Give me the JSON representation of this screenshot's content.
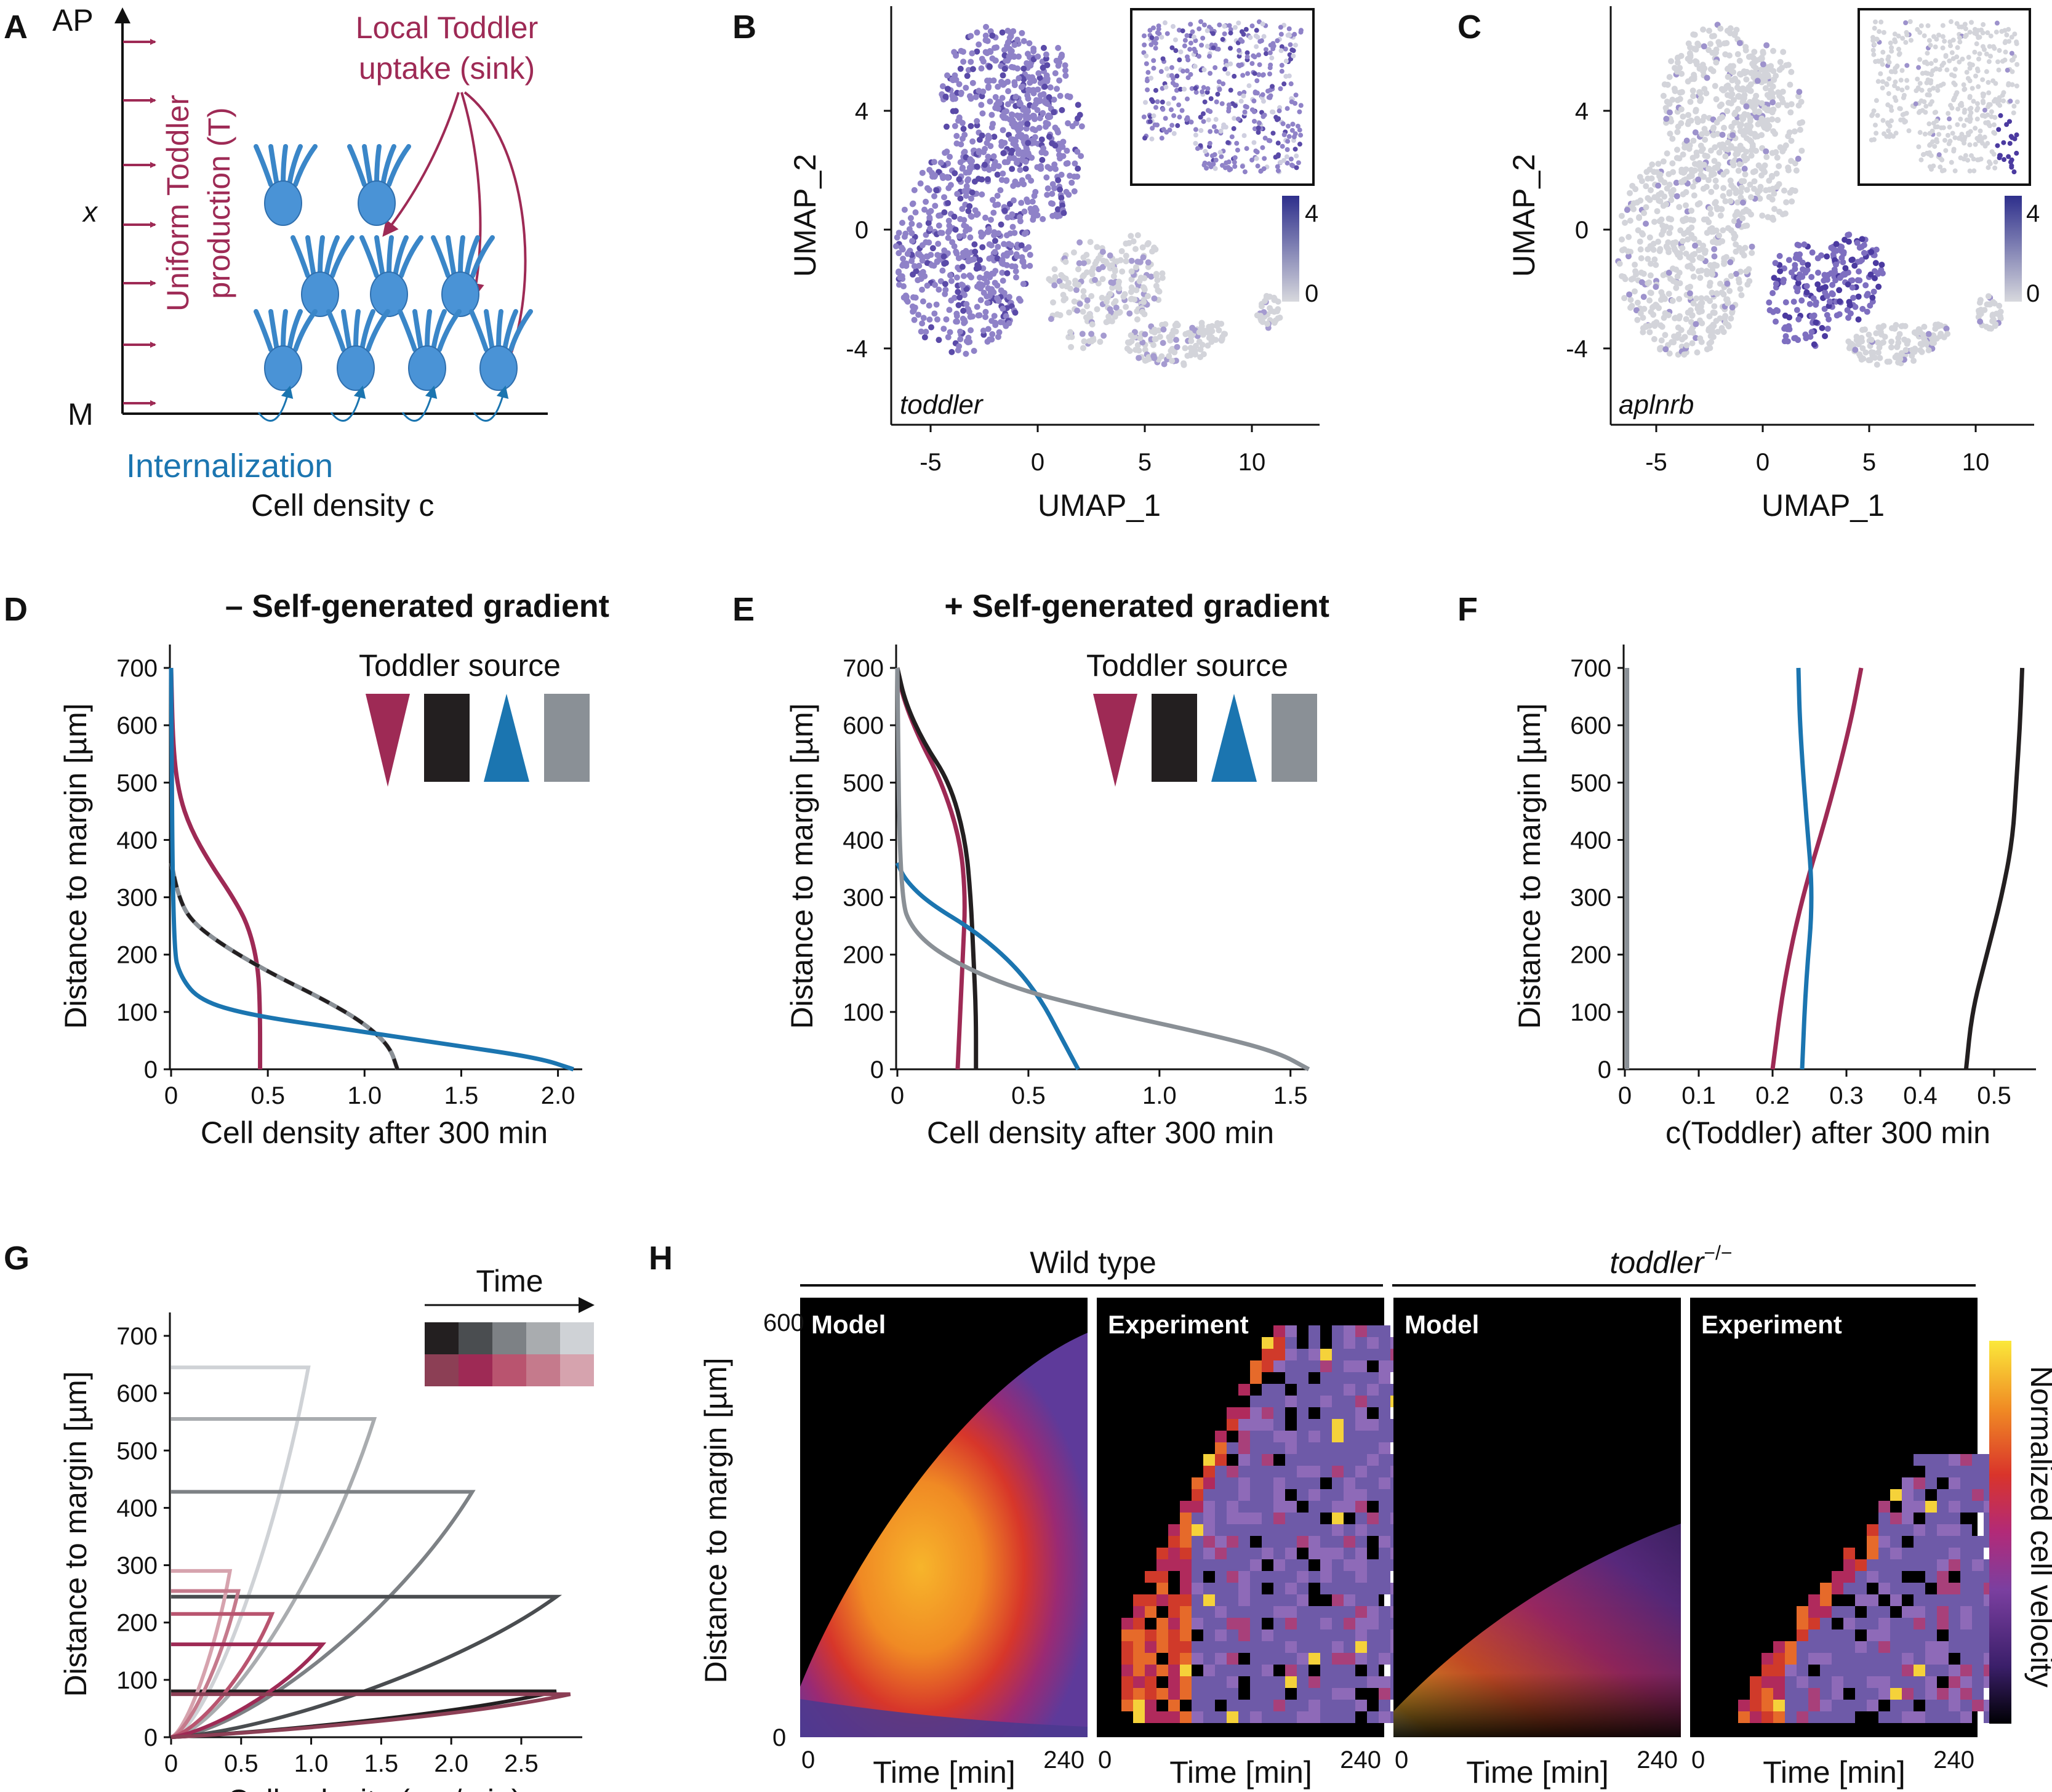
{
  "panels": {
    "A": {
      "letter": "A",
      "top_label": "AP",
      "bottom_label": "M",
      "x_var": "x",
      "production_label_1": "Uniform Toddler",
      "production_label_2": "production (T)",
      "sink_label_1": "Local Toddler",
      "sink_label_2": "uptake (sink)",
      "internalization": "Internalization",
      "xlabel": "Cell density c"
    },
    "B": {
      "letter": "B",
      "gene": "toddler",
      "xlabel": "UMAP_1",
      "ylabel": "UMAP_2",
      "xticks": [
        "-5",
        "0",
        "5",
        "10"
      ],
      "yticks": [
        "4",
        "0",
        "-4"
      ],
      "scale_ticks": [
        "4",
        "0"
      ]
    },
    "C": {
      "letter": "C",
      "gene": "aplnrb",
      "xlabel": "UMAP_1",
      "ylabel": "UMAP_2",
      "xticks": [
        "-5",
        "0",
        "5",
        "10"
      ],
      "yticks": [
        "4",
        "0",
        "-4"
      ],
      "scale_ticks": [
        "4",
        "0"
      ]
    },
    "D": {
      "letter": "D",
      "title": "– Self-generated gradient",
      "legend_title": "Toddler source"
    },
    "E": {
      "letter": "E",
      "title": "+ Self-generated gradient",
      "legend_title": "Toddler source"
    },
    "F": {
      "letter": "F"
    },
    "G": {
      "letter": "G",
      "legend_title": "Time"
    },
    "H": {
      "letter": "H",
      "group_wt": "Wild type",
      "group_mut": "toddler",
      "group_mut_sup": "−/−",
      "sub": [
        "Model",
        "Experiment",
        "Model",
        "Experiment"
      ],
      "ylabel": "Distance to margin [µm]",
      "yticks": [
        "600",
        "0"
      ],
      "xlabel": "Time [min]",
      "xticks": [
        "0",
        "240"
      ],
      "cbar_label": "Normalized cell velocity"
    }
  },
  "colors": {
    "crimson": "#9e2a55",
    "black": "#231f20",
    "blue": "#1b75b0",
    "gray": "#8a9096"
  },
  "chart_data": [
    {
      "id": "D",
      "type": "line",
      "xlabel": "Cell density after 300 min",
      "ylabel": "Distance to margin [µm]",
      "xlim": [
        0,
        2.1
      ],
      "ylim": [
        0,
        700
      ],
      "xticks": [
        "0",
        "0.5",
        "1.0",
        "1.5",
        "2.0"
      ],
      "yticks": [
        "0",
        "100",
        "200",
        "300",
        "400",
        "500",
        "600",
        "700"
      ],
      "series": [
        {
          "color": "crimson",
          "points": [
            [
              0.46,
              0
            ],
            [
              0.46,
              100
            ],
            [
              0.45,
              180
            ],
            [
              0.4,
              250
            ],
            [
              0.32,
              300
            ],
            [
              0.2,
              360
            ],
            [
              0.1,
              420
            ],
            [
              0.04,
              480
            ],
            [
              0.01,
              560
            ],
            [
              0,
              700
            ]
          ]
        },
        {
          "color": "gray",
          "points": [
            [
              1.17,
              0
            ],
            [
              1.13,
              40
            ],
            [
              1.0,
              80
            ],
            [
              0.8,
              120
            ],
            [
              0.5,
              170
            ],
            [
              0.25,
              220
            ],
            [
              0.1,
              260
            ],
            [
              0.04,
              300
            ],
            [
              0,
              360
            ]
          ]
        },
        {
          "color": "black",
          "dashed": true,
          "points": [
            [
              1.17,
              0
            ],
            [
              1.13,
              40
            ],
            [
              1.0,
              80
            ],
            [
              0.8,
              120
            ],
            [
              0.5,
              170
            ],
            [
              0.25,
              220
            ],
            [
              0.1,
              260
            ],
            [
              0.04,
              300
            ],
            [
              0,
              360
            ]
          ]
        },
        {
          "color": "blue",
          "points": [
            [
              2.08,
              0
            ],
            [
              1.9,
              20
            ],
            [
              1.4,
              45
            ],
            [
              0.9,
              70
            ],
            [
              0.4,
              95
            ],
            [
              0.15,
              120
            ],
            [
              0.05,
              160
            ],
            [
              0.01,
              210
            ],
            [
              0,
              700
            ]
          ]
        }
      ]
    },
    {
      "id": "E",
      "type": "line",
      "xlabel": "Cell density after 300 min",
      "ylabel": "Distance to margin [µm]",
      "xlim": [
        0,
        1.55
      ],
      "ylim": [
        0,
        700
      ],
      "xticks": [
        "0",
        "0.5",
        "1.0",
        "1.5"
      ],
      "yticks": [
        "0",
        "100",
        "200",
        "300",
        "400",
        "500",
        "600",
        "700"
      ],
      "series": [
        {
          "color": "crimson",
          "points": [
            [
              0.23,
              0
            ],
            [
              0.24,
              100
            ],
            [
              0.25,
              200
            ],
            [
              0.26,
              300
            ],
            [
              0.24,
              400
            ],
            [
              0.17,
              500
            ],
            [
              0.08,
              580
            ],
            [
              0.02,
              650
            ],
            [
              0,
              700
            ]
          ]
        },
        {
          "color": "black",
          "points": [
            [
              0.3,
              0
            ],
            [
              0.3,
              100
            ],
            [
              0.29,
              200
            ],
            [
              0.28,
              300
            ],
            [
              0.26,
              400
            ],
            [
              0.2,
              500
            ],
            [
              0.1,
              570
            ],
            [
              0.03,
              640
            ],
            [
              0,
              700
            ]
          ]
        },
        {
          "color": "blue",
          "points": [
            [
              0.69,
              0
            ],
            [
              0.62,
              60
            ],
            [
              0.55,
              120
            ],
            [
              0.45,
              180
            ],
            [
              0.3,
              240
            ],
            [
              0.12,
              290
            ],
            [
              0.03,
              330
            ],
            [
              0,
              360
            ]
          ]
        },
        {
          "color": "gray",
          "points": [
            [
              1.57,
              0
            ],
            [
              1.45,
              30
            ],
            [
              1.2,
              60
            ],
            [
              0.8,
              100
            ],
            [
              0.45,
              140
            ],
            [
              0.2,
              190
            ],
            [
              0.06,
              240
            ],
            [
              0.01,
              300
            ],
            [
              0,
              700
            ]
          ]
        }
      ]
    },
    {
      "id": "F",
      "type": "line",
      "xlabel": "c(Toddler) after 300 min",
      "ylabel": "Distance to margin [µm]",
      "xlim": [
        0,
        0.55
      ],
      "ylim": [
        0,
        700
      ],
      "xticks": [
        "0",
        "0.1",
        "0.2",
        "0.3",
        "0.4",
        "0.5"
      ],
      "yticks": [
        "0",
        "100",
        "200",
        "300",
        "400",
        "500",
        "600",
        "700"
      ],
      "series": [
        {
          "color": "gray",
          "points": [
            [
              0.003,
              0
            ],
            [
              0.003,
              700
            ]
          ]
        },
        {
          "color": "crimson",
          "points": [
            [
              0.2,
              0
            ],
            [
              0.215,
              150
            ],
            [
              0.24,
              300
            ],
            [
              0.275,
              450
            ],
            [
              0.305,
              600
            ],
            [
              0.32,
              700
            ]
          ]
        },
        {
          "color": "blue",
          "points": [
            [
              0.24,
              0
            ],
            [
              0.245,
              150
            ],
            [
              0.255,
              300
            ],
            [
              0.245,
              450
            ],
            [
              0.237,
              600
            ],
            [
              0.235,
              700
            ]
          ]
        },
        {
          "color": "black",
          "points": [
            [
              0.462,
              0
            ],
            [
              0.47,
              100
            ],
            [
              0.49,
              200
            ],
            [
              0.51,
              300
            ],
            [
              0.525,
              400
            ],
            [
              0.53,
              500
            ],
            [
              0.535,
              600
            ],
            [
              0.538,
              700
            ]
          ]
        }
      ]
    },
    {
      "id": "G",
      "type": "line",
      "xlabel": "Cell velocity (µm/min)",
      "ylabel": "Distance to margin [µm]",
      "xlim": [
        0,
        2.9
      ],
      "ylim": [
        0,
        700
      ],
      "xticks": [
        "0",
        "0.5",
        "1.0",
        "1.5",
        "2.0",
        "2.5"
      ],
      "yticks": [
        "0",
        "100",
        "200",
        "300",
        "400",
        "500",
        "600",
        "700"
      ],
      "time_gray": [
        "#231f20",
        "#4a4d50",
        "#7d8185",
        "#a9acaf",
        "#cfd2d6"
      ],
      "time_red": [
        "#8c3f55",
        "#9e2a55",
        "#b9546f",
        "#c57a8c",
        "#d6a3ae"
      ],
      "series": [
        {
          "color": "#cfd2d6",
          "front": 645,
          "vmax": 0.98
        },
        {
          "color": "#a9acaf",
          "front": 555,
          "vmax": 1.45
        },
        {
          "color": "#7d8185",
          "front": 428,
          "vmax": 2.15
        },
        {
          "color": "#4a4d50",
          "front": 245,
          "vmax": 2.75
        },
        {
          "color": "#231f20",
          "front": 80,
          "vmax": 2.75
        },
        {
          "color": "#d6a3ae",
          "front": 290,
          "vmax": 0.42
        },
        {
          "color": "#c57a8c",
          "front": 255,
          "vmax": 0.48
        },
        {
          "color": "#b9546f",
          "front": 215,
          "vmax": 0.72
        },
        {
          "color": "#9e2a55",
          "front": 162,
          "vmax": 1.08
        },
        {
          "color": "#8c3f55",
          "front": 75,
          "vmax": 2.85
        }
      ]
    },
    {
      "id": "H",
      "type": "heatmap",
      "xlabel": "Time [min]",
      "ylabel": "Distance to margin [µm]",
      "xlim": [
        0,
        240
      ],
      "ylim": [
        0,
        600
      ],
      "colorbar": "Normalized cell velocity",
      "panels": [
        "Wild type Model",
        "Wild type Experiment",
        "toddler−/− Model",
        "toddler−/− Experiment"
      ]
    },
    {
      "id": "B",
      "type": "scatter",
      "xlabel": "UMAP_1",
      "ylabel": "UMAP_2",
      "xlim": [
        -7,
        12.5
      ],
      "ylim": [
        -6.5,
        7
      ],
      "colorbar_range": [
        0,
        4
      ]
    },
    {
      "id": "C",
      "type": "scatter",
      "xlabel": "UMAP_1",
      "ylabel": "UMAP_2",
      "xlim": [
        -7,
        12.5
      ],
      "ylim": [
        -6.5,
        7
      ],
      "colorbar_range": [
        0,
        4
      ]
    }
  ]
}
